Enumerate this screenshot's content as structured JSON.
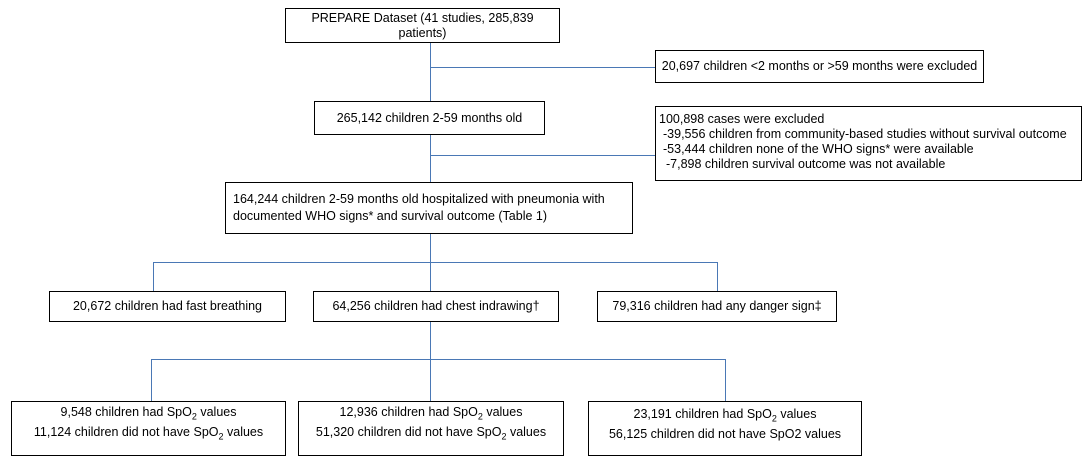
{
  "boxes": {
    "dataset": "PREPARE Dataset (41 studies, 285,839 patients)",
    "excluded_age": "20,697 children <2 months or >59 months were excluded",
    "age_eligible": "265,142 children 2-59 months old",
    "excluded_cases": {
      "title": "100,898 cases were excluded",
      "items": [
        "-39,556 children from community-based studies without survival outcome",
        "-53,444 children none of the WHO signs* were available",
        "-7,898 children survival outcome was not available"
      ]
    },
    "hospitalized": {
      "line1": "164,244 children 2-59 months old hospitalized with pneumonia with",
      "line2": "documented WHO signs* and survival outcome (Table 1)"
    },
    "fast_breathing": "20,672 children had fast breathing",
    "chest_indrawing": "64,256 children had chest indrawing†",
    "danger_sign": "79,316 children had any danger sign‡",
    "spo2_left": {
      "had_prefix": "9,548 children had SpO",
      "had_suffix": " values",
      "not_prefix": "11,124 children did not have SpO",
      "not_suffix": " values"
    },
    "spo2_middle": {
      "had_prefix": "12,936 children had SpO",
      "had_suffix": " values",
      "not_prefix": "51,320 children did not have SpO",
      "not_suffix": " values"
    },
    "spo2_right": {
      "had_prefix": "23,191 children had SpO",
      "had_suffix": " values",
      "not_text": "56,125 children did not have SpO2 values"
    },
    "subscript": "2"
  },
  "colors": {
    "connector": "#4a78b5",
    "border": "#000000"
  }
}
